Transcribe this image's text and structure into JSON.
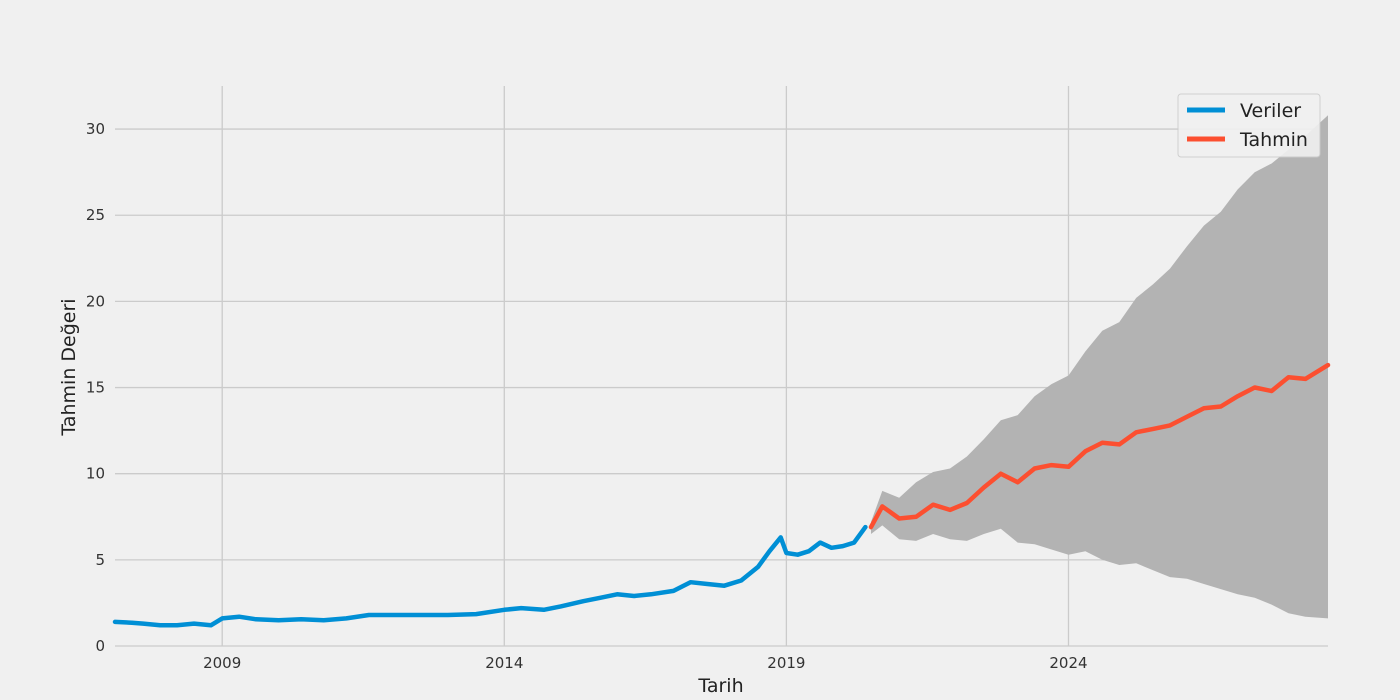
{
  "chart_data": {
    "type": "line",
    "title": "",
    "xlabel": "Tarih",
    "ylabel": "Tahmin Değeri",
    "xlim": [
      2007.1,
      2028.6
    ],
    "ylim": [
      0,
      32.5
    ],
    "x_ticks": [
      2009,
      2014,
      2019,
      2024
    ],
    "y_ticks": [
      0,
      5,
      10,
      15,
      20,
      25,
      30
    ],
    "grid": true,
    "legend_position": "top-right",
    "colors": {
      "background": "#f0f0f0",
      "grid": "#cbcbcb",
      "veriler": "#008fd5",
      "tahmin": "#fc4f30",
      "band": "#b3b3b3"
    },
    "series": [
      {
        "name": "Veriler",
        "x": [
          2007.1,
          2007.4,
          2007.6,
          2007.9,
          2008.2,
          2008.5,
          2008.8,
          2009.0,
          2009.3,
          2009.6,
          2010.0,
          2010.4,
          2010.8,
          2011.2,
          2011.6,
          2012.0,
          2012.5,
          2013.0,
          2013.5,
          2014.0,
          2014.3,
          2014.7,
          2015.0,
          2015.4,
          2015.7,
          2016.0,
          2016.3,
          2016.6,
          2017.0,
          2017.3,
          2017.6,
          2017.9,
          2018.2,
          2018.5,
          2018.7,
          2018.9,
          2019.0,
          2019.2,
          2019.4,
          2019.6,
          2019.8,
          2020.0,
          2020.2,
          2020.4
        ],
        "values": [
          1.4,
          1.35,
          1.3,
          1.2,
          1.2,
          1.3,
          1.2,
          1.6,
          1.7,
          1.55,
          1.5,
          1.55,
          1.5,
          1.6,
          1.8,
          1.8,
          1.8,
          1.8,
          1.85,
          2.1,
          2.2,
          2.1,
          2.3,
          2.6,
          2.8,
          3.0,
          2.9,
          3.0,
          3.2,
          3.7,
          3.6,
          3.5,
          3.8,
          4.6,
          5.5,
          6.3,
          5.4,
          5.3,
          5.5,
          6.0,
          5.7,
          5.8,
          6.0,
          6.9
        ]
      },
      {
        "name": "Tahmin",
        "x": [
          2020.5,
          2020.7,
          2021.0,
          2021.3,
          2021.6,
          2021.9,
          2022.2,
          2022.5,
          2022.8,
          2023.1,
          2023.4,
          2023.7,
          2024.0,
          2024.3,
          2024.6,
          2024.9,
          2025.2,
          2025.5,
          2025.8,
          2026.1,
          2026.4,
          2026.7,
          2027.0,
          2027.3,
          2027.6,
          2027.9,
          2028.2,
          2028.6
        ],
        "values": [
          6.9,
          8.1,
          7.4,
          7.5,
          8.2,
          7.9,
          8.3,
          9.2,
          10.0,
          9.5,
          10.3,
          10.5,
          10.4,
          11.3,
          11.8,
          11.7,
          12.4,
          12.6,
          12.8,
          13.3,
          13.8,
          13.9,
          14.5,
          15.0,
          14.8,
          15.6,
          15.5,
          16.3
        ]
      }
    ],
    "confidence_band": {
      "x": [
        2020.5,
        2020.7,
        2021.0,
        2021.3,
        2021.6,
        2021.9,
        2022.2,
        2022.5,
        2022.8,
        2023.1,
        2023.4,
        2023.7,
        2024.0,
        2024.3,
        2024.6,
        2024.9,
        2025.2,
        2025.5,
        2025.8,
        2026.1,
        2026.4,
        2026.7,
        2027.0,
        2027.3,
        2027.6,
        2027.9,
        2028.2,
        2028.6
      ],
      "lower": [
        6.5,
        7.0,
        6.2,
        6.1,
        6.5,
        6.2,
        6.1,
        6.5,
        6.8,
        6.0,
        5.9,
        5.6,
        5.3,
        5.5,
        5.0,
        4.7,
        4.8,
        4.4,
        4.0,
        3.9,
        3.6,
        3.3,
        3.0,
        2.8,
        2.4,
        1.9,
        1.7,
        1.6
      ],
      "upper": [
        7.2,
        9.0,
        8.6,
        9.5,
        10.1,
        10.3,
        11.0,
        12.0,
        13.1,
        13.4,
        14.5,
        15.2,
        15.7,
        17.1,
        18.3,
        18.8,
        20.2,
        21.0,
        21.9,
        23.2,
        24.4,
        25.2,
        26.5,
        27.5,
        28.0,
        28.8,
        29.6,
        30.8
      ]
    }
  }
}
